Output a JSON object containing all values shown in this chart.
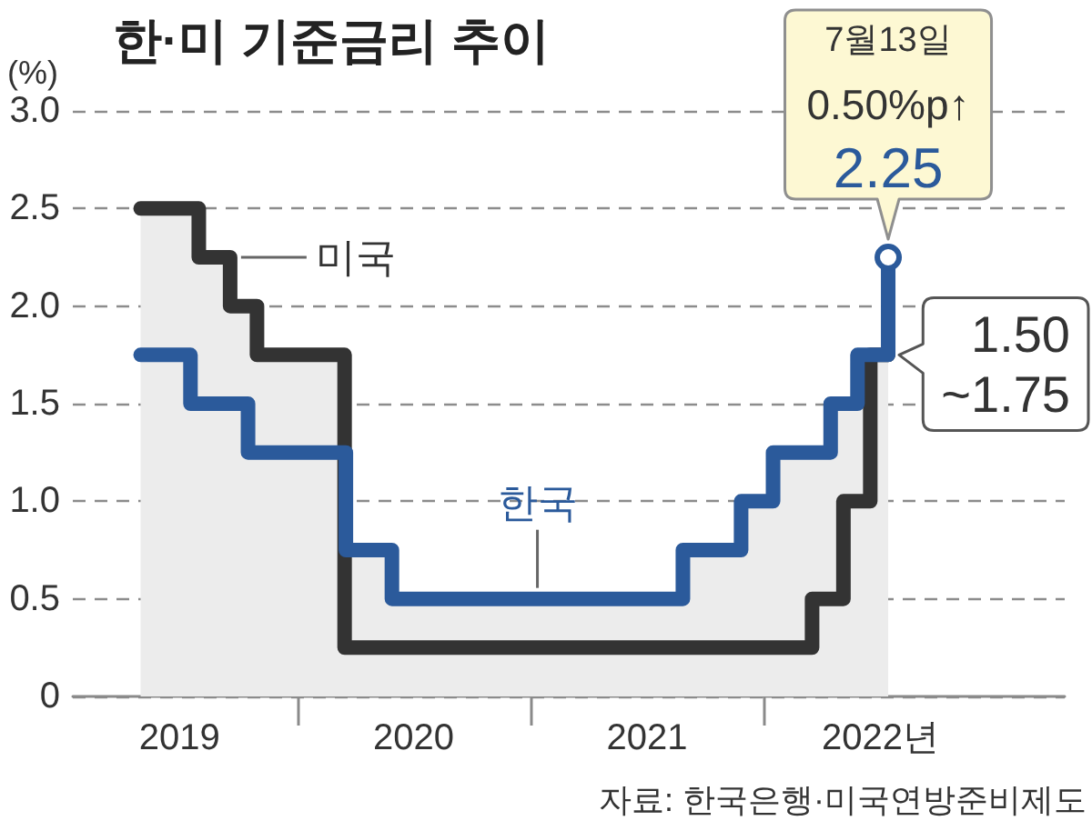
{
  "chart_data": {
    "type": "step",
    "title": "한·미 기준금리 추이",
    "ylabel": "(%)",
    "xlim": [
      "2019-01-15",
      "2023-04-15"
    ],
    "xticks": [
      {
        "value": "2019-07-01",
        "label": "2019"
      },
      {
        "value": "2020-01-01",
        "label": null
      },
      {
        "value": "2020-07-01",
        "label": "2020"
      },
      {
        "value": "2021-01-01",
        "label": null
      },
      {
        "value": "2021-07-01",
        "label": "2021"
      },
      {
        "value": "2022-01-01",
        "label": null
      },
      {
        "value": "2022-07-01",
        "label": "2022년"
      }
    ],
    "ylim": [
      0,
      3
    ],
    "yticks": [
      0,
      0.5,
      {
        "value": 1,
        "label": "1.0"
      },
      1.5,
      {
        "value": 2,
        "label": "2.0"
      },
      2.5,
      {
        "value": 3,
        "label": "3.0"
      }
    ],
    "grid": "y",
    "marker": "none",
    "line_style": "solid",
    "series": [
      {
        "type": "area",
        "color": "#ececec",
        "x": [
          "2019-05-01",
          "2019-07-31",
          "2019-07-31",
          "2019-09-18",
          "2019-09-18",
          "2019-10-30",
          "2019-10-30",
          "2020-03-15",
          "2020-03-15",
          "2020-03-17",
          "2020-03-17",
          "2020-05-28",
          "2020-05-28",
          "2021-08-26",
          "2021-08-26",
          "2021-11-25",
          "2021-11-25",
          "2022-01-14",
          "2022-01-14",
          "2022-04-14",
          "2022-04-14",
          "2022-05-26",
          "2022-05-26",
          "2022-07-13"
        ],
        "values": [
          2.5,
          2.5,
          2.25,
          2.25,
          2,
          2,
          1.75,
          1.75,
          1.25,
          1.25,
          0.75,
          0.75,
          0.5,
          0.5,
          0.75,
          0.75,
          1,
          1,
          1.25,
          1.25,
          1.5,
          1.5,
          1.75,
          1.75
        ]
      },
      {
        "name": "미국",
        "color": "#333333",
        "x": [
          "2019-05-01",
          "2019-07-31",
          "2019-09-18",
          "2019-10-30",
          "2020-03-15",
          "2022-03-16",
          "2022-05-04",
          "2022-06-15",
          "2022-07-13"
        ],
        "values": [
          2.5,
          2.25,
          2,
          1.75,
          0.25,
          0.5,
          1,
          1.75,
          1.75
        ]
      },
      {
        "name": "한국",
        "color": "#2b5a9b",
        "x": [
          "2019-05-01",
          "2019-07-18",
          "2019-10-16",
          "2020-03-17",
          "2020-05-28",
          "2021-08-26",
          "2021-11-25",
          "2022-01-14",
          "2022-04-14",
          "2022-05-26",
          "2022-07-13"
        ],
        "values": [
          1.75,
          1.5,
          1.25,
          0.75,
          0.5,
          0.75,
          1,
          1.25,
          1.5,
          1.75,
          2.25
        ]
      }
    ],
    "annotations": [
      {
        "text": "7월13일\n0.50%p↑\n2.25",
        "x": "2022-07-13",
        "y": 2.25
      },
      {
        "text": "1.50\n~1.75",
        "x": "2022-07-13",
        "y": 1.75
      },
      "자료: 한국은행·미국연방준비제도"
    ]
  }
}
